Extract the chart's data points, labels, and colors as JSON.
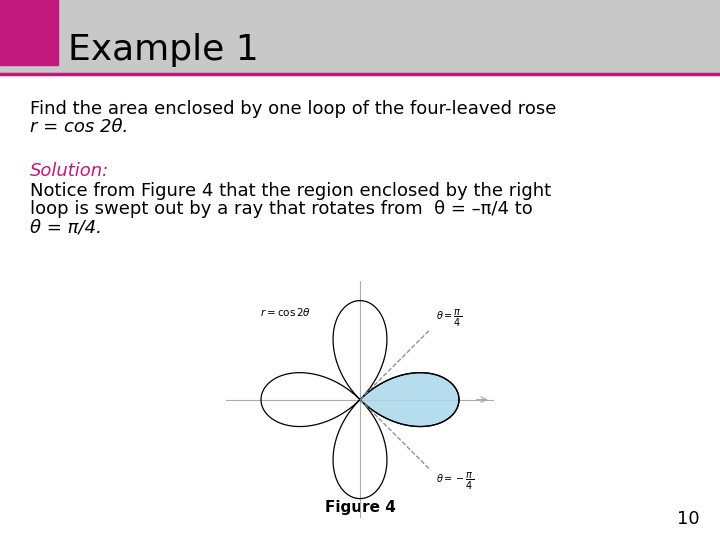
{
  "title": "Example 1",
  "title_bg_color": "#c8c8c8",
  "title_accent_color": "#c0187c",
  "title_box_color": "#c0187c",
  "title_fontsize": 26,
  "body_text_line1": "Find the area enclosed by one loop of the four-leaved rose",
  "body_text_line2": "r = cos 2θ.",
  "solution_label": "Solution:",
  "solution_color": "#c0187c",
  "notice_text_line1": "Notice from Figure 4 that the region enclosed by the right",
  "notice_text_line2": "loop is swept out by a ray that rotates from  θ = –π/4 to",
  "notice_text_line3": "θ = π/4.",
  "figure_label": "Figure 4",
  "page_number": "10",
  "background_color": "#ffffff",
  "text_color": "#000000",
  "rose_color": "#000000",
  "fill_color": "#a8d8ea",
  "ray_color": "#888888"
}
